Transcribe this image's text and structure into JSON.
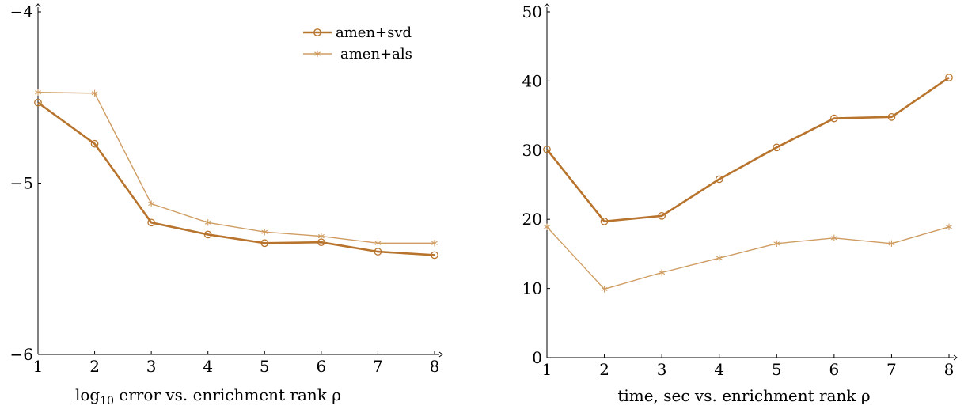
{
  "colors": {
    "svd": "#b8742c",
    "als": "#cf9d63"
  },
  "legend": {
    "svd_label": "amen+svd",
    "als_label": "amen+als"
  },
  "chart_data": [
    {
      "type": "line",
      "title": "",
      "xlabel_main": "log",
      "xlabel_sub": "10",
      "xlabel_rest": " error vs. enrichment rank ρ",
      "ylabel": "",
      "x": [
        1,
        2,
        3,
        4,
        5,
        6,
        7,
        8
      ],
      "xlim": [
        1,
        8
      ],
      "ylim": [
        -6,
        -4
      ],
      "yticks": [
        -6,
        -5,
        -4
      ],
      "ytick_labels": [
        "−6",
        "−5",
        "−4"
      ],
      "grid": false,
      "legend_position": "top-right",
      "series": [
        {
          "name": "amen+svd",
          "marker": "circle",
          "values": [
            -4.53,
            -4.77,
            -5.23,
            -5.3,
            -5.35,
            -5.345,
            -5.4,
            -5.42
          ]
        },
        {
          "name": "amen+als",
          "marker": "star",
          "values": [
            -4.47,
            -4.475,
            -5.12,
            -5.23,
            -5.285,
            -5.31,
            -5.35,
            -5.35
          ]
        }
      ]
    },
    {
      "type": "line",
      "title": "",
      "xlabel": "time, sec vs. enrichment rank ρ",
      "ylabel": "",
      "x": [
        1,
        2,
        3,
        4,
        5,
        6,
        7,
        8
      ],
      "xlim": [
        1,
        8
      ],
      "ylim": [
        0,
        50
      ],
      "yticks": [
        0,
        10,
        20,
        30,
        40,
        50
      ],
      "ytick_labels": [
        "0",
        "10",
        "20",
        "30",
        "40",
        "50"
      ],
      "grid": false,
      "series": [
        {
          "name": "amen+svd",
          "marker": "circle",
          "values": [
            30.1,
            19.7,
            20.5,
            25.8,
            30.4,
            34.6,
            34.8,
            40.5
          ]
        },
        {
          "name": "amen+als",
          "marker": "star",
          "values": [
            18.9,
            9.9,
            12.3,
            14.4,
            16.5,
            17.3,
            16.5,
            18.9
          ]
        }
      ]
    }
  ]
}
